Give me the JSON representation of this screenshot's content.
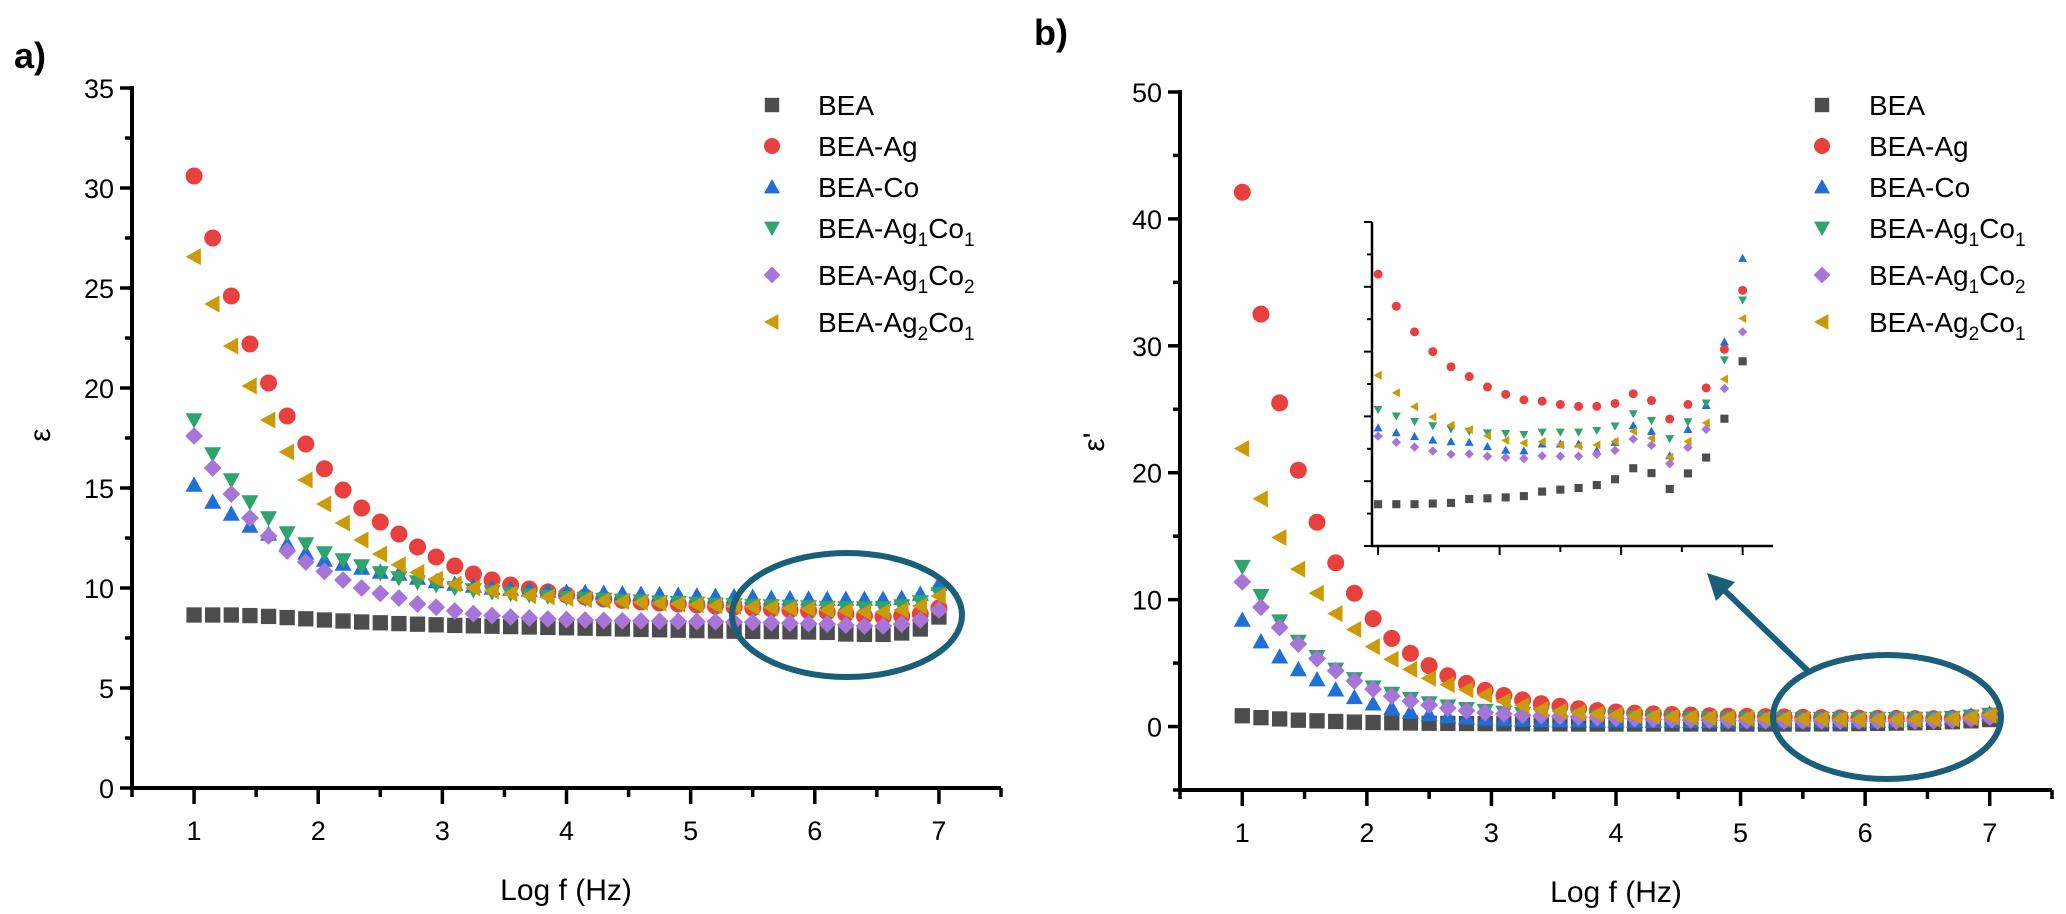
{
  "chart_data": [
    {
      "type": "scatter",
      "panel_label": "a)",
      "xlabel": "Log f (Hz)",
      "ylabel": "ε",
      "xlim": [
        0.5,
        7.5
      ],
      "ylim": [
        0,
        35
      ],
      "xticks": [
        1,
        2,
        3,
        4,
        5,
        6,
        7
      ],
      "yticks": [
        0,
        5,
        10,
        15,
        20,
        25,
        30,
        35
      ],
      "grid": false,
      "legend_position": "top-right",
      "annotation": "ellipse highlighting the high-frequency region (Log f ≈ 5.3–7)",
      "x": [
        1,
        1.15,
        1.3,
        1.45,
        1.6,
        1.75,
        1.9,
        2.05,
        2.2,
        2.35,
        2.5,
        2.65,
        2.8,
        2.95,
        3.1,
        3.25,
        3.4,
        3.55,
        3.7,
        3.85,
        4,
        4.15,
        4.3,
        4.45,
        4.6,
        4.75,
        4.9,
        5.05,
        5.2,
        5.35,
        5.5,
        5.65,
        5.8,
        5.95,
        6.1,
        6.25,
        6.4,
        6.55,
        6.7,
        6.85,
        7
      ],
      "series": [
        {
          "name": "BEA",
          "label": [
            "BEA"
          ],
          "marker": "square",
          "color": "#4d4d4d",
          "values": [
            8.65,
            8.65,
            8.65,
            8.62,
            8.58,
            8.52,
            8.46,
            8.4,
            8.35,
            8.3,
            8.26,
            8.22,
            8.19,
            8.16,
            8.13,
            8.11,
            8.09,
            8.07,
            8.05,
            8.03,
            8.01,
            7.99,
            7.97,
            7.95,
            7.93,
            7.91,
            7.89,
            7.87,
            7.85,
            7.84,
            7.83,
            7.82,
            7.81,
            7.8,
            7.78,
            7.7,
            7.68,
            7.68,
            7.75,
            7.95,
            8.55
          ]
        },
        {
          "name": "BEA-Ag",
          "label": [
            "BEA-Ag"
          ],
          "marker": "circle",
          "color": "#e8403e",
          "values": [
            30.6,
            27.5,
            24.6,
            22.2,
            20.25,
            18.6,
            17.2,
            15.96,
            14.9,
            14.0,
            13.3,
            12.7,
            12.05,
            11.55,
            11.1,
            10.7,
            10.4,
            10.15,
            9.95,
            9.8,
            9.65,
            9.55,
            9.45,
            9.38,
            9.3,
            9.25,
            9.2,
            9.15,
            9.1,
            9.05,
            9.0,
            8.95,
            8.9,
            8.85,
            8.8,
            8.7,
            8.6,
            8.55,
            8.6,
            8.7,
            9.0
          ]
        },
        {
          "name": "BEA-Co",
          "label": [
            "BEA-Co"
          ],
          "marker": "triangle-up",
          "color": "#1f6fd6",
          "values": [
            15.15,
            14.3,
            13.7,
            13.1,
            12.7,
            12.2,
            11.75,
            11.4,
            11.2,
            11.0,
            10.8,
            10.7,
            10.5,
            10.33,
            10.2,
            10.1,
            10.0,
            9.95,
            9.9,
            9.85,
            9.8,
            9.78,
            9.75,
            9.72,
            9.7,
            9.68,
            9.65,
            9.62,
            9.6,
            9.58,
            9.55,
            9.5,
            9.48,
            9.46,
            9.45,
            9.45,
            9.45,
            9.45,
            9.5,
            9.7,
            10.2
          ]
        },
        {
          "name": "BEA-Ag1Co1",
          "label": [
            "BEA-Ag",
            "1",
            "Co",
            "1"
          ],
          "marker": "triangle-down",
          "color": "#2ea36b",
          "values": [
            18.4,
            16.7,
            15.4,
            14.3,
            13.5,
            12.75,
            12.2,
            11.75,
            11.4,
            11.1,
            10.75,
            10.5,
            10.3,
            10.15,
            10.0,
            9.9,
            9.8,
            9.72,
            9.65,
            9.58,
            9.52,
            9.47,
            9.42,
            9.38,
            9.34,
            9.3,
            9.26,
            9.22,
            9.18,
            9.15,
            9.12,
            9.1,
            9.08,
            9.05,
            9.02,
            9.0,
            9.0,
            9.0,
            9.1,
            9.3,
            9.7
          ]
        },
        {
          "name": "BEA-Ag1Co2",
          "label": [
            "BEA-Ag",
            "1",
            "Co",
            "2"
          ],
          "marker": "diamond",
          "color": "#a774d8",
          "values": [
            17.6,
            16.0,
            14.7,
            13.5,
            12.6,
            11.85,
            11.3,
            10.83,
            10.4,
            10.0,
            9.73,
            9.5,
            9.2,
            9.04,
            8.85,
            8.72,
            8.62,
            8.55,
            8.5,
            8.45,
            8.42,
            8.4,
            8.38,
            8.36,
            8.35,
            8.34,
            8.33,
            8.32,
            8.31,
            8.3,
            8.28,
            8.26,
            8.24,
            8.22,
            8.2,
            8.15,
            8.1,
            8.1,
            8.2,
            8.4,
            8.9
          ]
        },
        {
          "name": "BEA-Ag2Co1",
          "label": [
            "BEA-Ag",
            "2",
            "Co",
            "1"
          ],
          "marker": "triangle-left",
          "color": "#cc9a06",
          "values": [
            26.56,
            24.2,
            22.1,
            20.1,
            18.4,
            16.8,
            15.4,
            14.2,
            13.25,
            12.4,
            11.7,
            11.16,
            10.78,
            10.45,
            10.2,
            10.0,
            9.85,
            9.72,
            9.62,
            9.55,
            9.48,
            9.42,
            9.37,
            9.32,
            9.28,
            9.24,
            9.2,
            9.16,
            9.12,
            9.08,
            9.05,
            9.02,
            8.98,
            8.95,
            8.9,
            8.85,
            8.8,
            8.8,
            8.9,
            9.1,
            9.6
          ]
        }
      ]
    },
    {
      "type": "scatter",
      "panel_label": "b)",
      "xlabel": "Log f (Hz)",
      "ylabel": "ε'",
      "xlim": [
        0.5,
        7.5
      ],
      "ylim": [
        -5,
        50
      ],
      "xticks": [
        1,
        2,
        3,
        4,
        5,
        6,
        7
      ],
      "yticks": [
        0,
        10,
        20,
        30,
        40,
        50
      ],
      "grid": false,
      "legend_position": "top-right",
      "annotation": "ellipse around high-frequency region with arrow pointing to inset",
      "x": [
        1,
        1.15,
        1.3,
        1.45,
        1.6,
        1.75,
        1.9,
        2.05,
        2.2,
        2.35,
        2.5,
        2.65,
        2.8,
        2.95,
        3.1,
        3.25,
        3.4,
        3.55,
        3.7,
        3.85,
        4,
        4.15,
        4.3,
        4.45,
        4.6,
        4.75,
        4.9,
        5.05,
        5.2,
        5.35,
        5.5,
        5.65,
        5.8,
        5.95,
        6.1,
        6.25,
        6.4,
        6.55,
        6.7,
        6.85,
        7
      ],
      "series": [
        {
          "name": "BEA",
          "label": [
            "BEA"
          ],
          "marker": "square",
          "color": "#4d4d4d",
          "values": [
            0.85,
            0.7,
            0.6,
            0.5,
            0.45,
            0.4,
            0.35,
            0.32,
            0.3,
            0.28,
            0.26,
            0.25,
            0.24,
            0.23,
            0.22,
            0.22,
            0.21,
            0.21,
            0.2,
            0.2,
            0.2,
            0.2,
            0.2,
            0.2,
            0.2,
            0.2,
            0.2,
            0.2,
            0.2,
            0.2,
            0.2,
            0.21,
            0.22,
            0.23,
            0.25,
            0.27,
            0.3,
            0.33,
            0.38,
            0.45,
            0.55
          ]
        },
        {
          "name": "BEA-Ag",
          "label": [
            "BEA-Ag"
          ],
          "marker": "circle",
          "color": "#e8403e",
          "values": [
            42.1,
            32.5,
            25.5,
            20.2,
            16.1,
            12.9,
            10.5,
            8.5,
            6.95,
            5.77,
            4.8,
            4.0,
            3.4,
            2.85,
            2.45,
            2.1,
            1.8,
            1.6,
            1.4,
            1.25,
            1.15,
            1.05,
            1.0,
            0.95,
            0.9,
            0.85,
            0.82,
            0.8,
            0.78,
            0.75,
            0.72,
            0.7,
            0.68,
            0.66,
            0.65,
            0.64,
            0.62,
            0.62,
            0.65,
            0.72,
            0.85
          ]
        },
        {
          "name": "BEA-Co",
          "label": [
            "BEA-Co"
          ],
          "marker": "triangle-up",
          "color": "#1f6fd6",
          "values": [
            8.4,
            6.7,
            5.5,
            4.5,
            3.7,
            2.9,
            2.3,
            1.8,
            1.45,
            1.15,
            0.95,
            0.8,
            0.7,
            0.62,
            0.56,
            0.52,
            0.5,
            0.48,
            0.46,
            0.45,
            0.44,
            0.43,
            0.42,
            0.42,
            0.41,
            0.41,
            0.4,
            0.4,
            0.4,
            0.4,
            0.4,
            0.4,
            0.4,
            0.4,
            0.42,
            0.45,
            0.5,
            0.6,
            0.7,
            0.85,
            1.0
          ]
        },
        {
          "name": "BEA-Ag1Co1",
          "label": [
            "BEA-Ag",
            "1",
            "Co",
            "1"
          ],
          "marker": "triangle-down",
          "color": "#2ea36b",
          "values": [
            12.6,
            10.3,
            8.3,
            6.7,
            5.5,
            4.5,
            3.75,
            3.1,
            2.6,
            2.2,
            1.85,
            1.6,
            1.4,
            1.25,
            1.1,
            1.0,
            0.95,
            0.9,
            0.85,
            0.8,
            0.78,
            0.75,
            0.72,
            0.7,
            0.68,
            0.66,
            0.65,
            0.64,
            0.63,
            0.62,
            0.62,
            0.62,
            0.62,
            0.62,
            0.62,
            0.62,
            0.63,
            0.65,
            0.7,
            0.8,
            0.95
          ]
        },
        {
          "name": "BEA-Ag1Co2",
          "label": [
            "BEA-Ag",
            "1",
            "Co",
            "2"
          ],
          "marker": "diamond",
          "color": "#a774d8",
          "values": [
            11.4,
            9.4,
            7.8,
            6.5,
            5.35,
            4.4,
            3.6,
            2.95,
            2.4,
            2.0,
            1.7,
            1.45,
            1.25,
            1.1,
            1.0,
            0.9,
            0.85,
            0.8,
            0.75,
            0.7,
            0.66,
            0.62,
            0.58,
            0.55,
            0.52,
            0.5,
            0.48,
            0.46,
            0.45,
            0.44,
            0.43,
            0.43,
            0.42,
            0.42,
            0.42,
            0.42,
            0.43,
            0.45,
            0.5,
            0.6,
            0.75
          ]
        },
        {
          "name": "BEA-Ag2Co1",
          "label": [
            "BEA-Ag",
            "2",
            "Co",
            "1"
          ],
          "marker": "triangle-left",
          "color": "#cc9a06",
          "values": [
            21.9,
            17.95,
            14.9,
            12.4,
            10.5,
            8.9,
            7.65,
            6.3,
            5.3,
            4.5,
            3.8,
            3.3,
            2.9,
            2.5,
            2.0,
            1.65,
            1.35,
            1.2,
            1.1,
            1.0,
            0.9,
            0.85,
            0.8,
            0.75,
            0.72,
            0.7,
            0.68,
            0.66,
            0.64,
            0.62,
            0.6,
            0.58,
            0.57,
            0.56,
            0.55,
            0.55,
            0.55,
            0.57,
            0.6,
            0.7,
            0.9
          ]
        }
      ]
    },
    {
      "type": "scatter",
      "role": "inset of panel b (no tick labels)",
      "xlim": [
        3.95,
        7.25
      ],
      "ylim": [
        0,
        1
      ],
      "xticks": [
        4,
        4.5,
        5,
        5.5,
        6,
        6.5,
        7
      ],
      "yticks": [
        0,
        0.1,
        0.2,
        0.3,
        0.4,
        0.5,
        0.6,
        0.7,
        0.8,
        0.9,
        1.0
      ],
      "x": [
        4,
        4.15,
        4.3,
        4.45,
        4.6,
        4.75,
        4.9,
        5.05,
        5.2,
        5.35,
        5.5,
        5.65,
        5.8,
        5.95,
        6.1,
        6.25,
        6.4,
        6.55,
        6.7,
        6.85,
        7
      ],
      "series": [
        {
          "name": "BEA",
          "marker": "square",
          "color": "#4d4d4d",
          "values": [
            0.129,
            0.129,
            0.129,
            0.131,
            0.133,
            0.145,
            0.147,
            0.15,
            0.154,
            0.168,
            0.174,
            0.179,
            0.188,
            0.206,
            0.24,
            0.225,
            0.176,
            0.224,
            0.273,
            0.393,
            0.57
          ]
        },
        {
          "name": "BEA-Ag",
          "marker": "circle",
          "color": "#e8403e",
          "values": [
            0.839,
            0.74,
            0.661,
            0.6,
            0.553,
            0.523,
            0.491,
            0.468,
            0.451,
            0.447,
            0.437,
            0.431,
            0.431,
            0.44,
            0.47,
            0.449,
            0.392,
            0.437,
            0.488,
            0.607,
            0.789
          ]
        },
        {
          "name": "BEA-Co",
          "marker": "triangle-up",
          "color": "#1f6fd6",
          "values": [
            0.365,
            0.35,
            0.338,
            0.327,
            0.322,
            0.32,
            0.307,
            0.296,
            0.294,
            0.315,
            0.315,
            0.315,
            0.294,
            0.32,
            0.372,
            0.354,
            0.279,
            0.36,
            0.434,
            0.63,
            0.888
          ]
        },
        {
          "name": "BEA-Ag1Co1",
          "marker": "triangle-down",
          "color": "#2ea36b",
          "values": [
            0.421,
            0.401,
            0.384,
            0.371,
            0.361,
            0.354,
            0.349,
            0.347,
            0.344,
            0.351,
            0.351,
            0.351,
            0.356,
            0.37,
            0.408,
            0.387,
            0.331,
            0.383,
            0.441,
            0.574,
            0.759
          ]
        },
        {
          "name": "BEA-Ag1Co2",
          "marker": "diamond",
          "color": "#a774d8",
          "values": [
            0.339,
            0.32,
            0.305,
            0.293,
            0.283,
            0.284,
            0.277,
            0.273,
            0.27,
            0.278,
            0.277,
            0.277,
            0.283,
            0.295,
            0.33,
            0.311,
            0.254,
            0.304,
            0.36,
            0.486,
            0.661
          ]
        },
        {
          "name": "BEA-Ag2Co1",
          "marker": "triangle-left",
          "color": "#cc9a06",
          "values": [
            0.527,
            0.473,
            0.43,
            0.398,
            0.373,
            0.359,
            0.34,
            0.326,
            0.318,
            0.322,
            0.312,
            0.309,
            0.312,
            0.323,
            0.354,
            0.333,
            0.274,
            0.323,
            0.38,
            0.515,
            0.702
          ]
        }
      ]
    }
  ],
  "colors": {
    "annotation": "#1b5e7a",
    "axis": "#000000"
  }
}
